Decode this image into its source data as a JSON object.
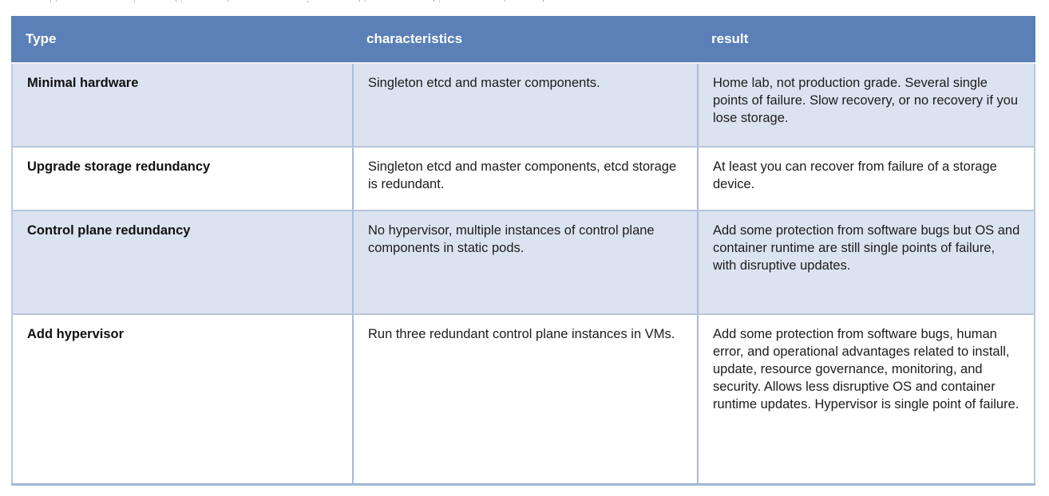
{
  "table": {
    "columns": [
      {
        "label": "Type"
      },
      {
        "label": "characteristics"
      },
      {
        "label": "result"
      }
    ],
    "rows": [
      {
        "type": "Minimal hardware",
        "characteristics": "Singleton etcd and master components.",
        "result": "Home lab, not production grade. Several single points of failure. Slow recovery, or no recovery if you lose storage."
      },
      {
        "type": "Upgrade storage redundancy",
        "characteristics": "Singleton etcd and master components, etcd storage is redundant.",
        "result": "At least you can recover from failure of a storage device."
      },
      {
        "type": "Control plane redundancy",
        "characteristics": "No hypervisor, multiple instances of control plane components in static pods.",
        "result": "Add some protection from software bugs but OS and container runtime are still single points of failure, with disruptive updates."
      },
      {
        "type": "Add hypervisor",
        "characteristics": "Run three redundant control plane instances in VMs.",
        "result": "Add some protection from software bugs, human error, and operational advantages related to install, update, resource governance, monitoring, and security. Allows less disruptive OS and container runtime updates. Hypervisor is single point of failure."
      }
    ],
    "colors": {
      "header_bg": "#5a80b7",
      "header_text": "#ffffff",
      "alt_row_bg": "#dce3f0",
      "row_bg": "#ffffff",
      "divider_border": "#a9bcd8",
      "outer_bottom_border": "#a3b8d3",
      "body_text": "#1c1c1c"
    }
  }
}
